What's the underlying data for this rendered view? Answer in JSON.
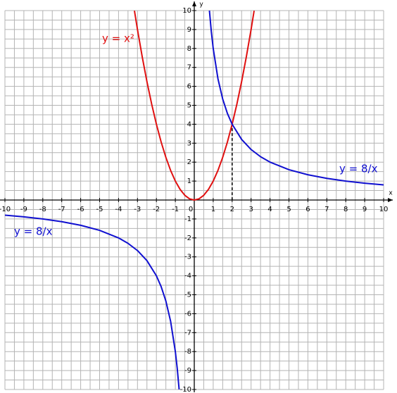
{
  "chart_data": {
    "type": "line",
    "xlabel": "x",
    "ylabel": "y",
    "xlim": [
      -10,
      10
    ],
    "ylim": [
      -10,
      10
    ],
    "xticks": [
      -10,
      -9,
      -8,
      -7,
      -6,
      -5,
      -4,
      -3,
      -2,
      -1,
      0,
      1,
      2,
      3,
      4,
      5,
      6,
      7,
      8,
      9,
      10
    ],
    "yticks": [
      -10,
      -9,
      -8,
      -7,
      -6,
      -5,
      -4,
      -3,
      -2,
      -1,
      1,
      2,
      3,
      4,
      5,
      6,
      7,
      8,
      9,
      10
    ],
    "grid": true,
    "grid_step": 0.5,
    "series": [
      {
        "name": "y = x²",
        "color": "#e01010",
        "x": [
          -3.16,
          -3,
          -2.75,
          -2.5,
          -2.25,
          -2,
          -1.75,
          -1.5,
          -1.25,
          -1,
          -0.75,
          -0.5,
          -0.25,
          0,
          0.25,
          0.5,
          0.75,
          1,
          1.25,
          1.5,
          1.75,
          2,
          2.25,
          2.5,
          2.75,
          3,
          3.16
        ],
        "values": [
          9.99,
          9,
          7.5625,
          6.25,
          5.0625,
          4,
          3.0625,
          2.25,
          1.5625,
          1,
          0.5625,
          0.25,
          0.0625,
          0,
          0.0625,
          0.25,
          0.5625,
          1,
          1.5625,
          2.25,
          3.0625,
          4,
          5.0625,
          6.25,
          7.5625,
          9,
          9.99
        ]
      },
      {
        "name": "y = 8/x",
        "color": "#1010d0",
        "x": [
          -10,
          -9,
          -8,
          -7,
          -6,
          -5,
          -4,
          -3.5,
          -3,
          -2.5,
          -2,
          -1.75,
          -1.5,
          -1.25,
          -1,
          -0.9,
          -0.8,
          0,
          0.8,
          0.9,
          1,
          1.25,
          1.5,
          1.75,
          2,
          2.5,
          3,
          3.5,
          4,
          5,
          6,
          7,
          8,
          9,
          10
        ],
        "values": [
          -0.8,
          -0.889,
          -1,
          -1.143,
          -1.333,
          -1.6,
          -2,
          -2.286,
          -2.667,
          -3.2,
          -4,
          -4.571,
          -5.333,
          -6.4,
          -8,
          -8.889,
          -10,
          null,
          10,
          8.889,
          8,
          6.4,
          5.333,
          4.571,
          4,
          3.2,
          2.667,
          2.286,
          2,
          1.6,
          1.333,
          1.143,
          1,
          0.889,
          0.8
        ]
      }
    ],
    "dropline": {
      "x": 2,
      "y": 4
    }
  }
}
